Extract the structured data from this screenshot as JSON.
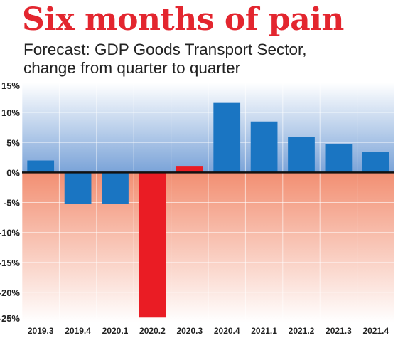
{
  "title": "Six months of pain",
  "subtitle": [
    "Forecast: GDP Goods Transport Sector,",
    "change from quarter to quarter"
  ],
  "colors": {
    "title": "#e3262f",
    "positive_bar": "#1a75c2",
    "negative_bar": "#ea1c24",
    "upper_background_top": "#ffffff",
    "upper_background_bottom": "#7aa3d8",
    "lower_background_top": "#f28f72",
    "lower_background_bottom": "#ffffff"
  },
  "chart_data": {
    "type": "bar",
    "title": "Six months of pain",
    "subtitle": "Forecast: GDP Goods Transport Sector, change from quarter to quarter",
    "categories": [
      "2019.3",
      "2019.4",
      "2020.1",
      "2020.2",
      "2020.3",
      "2020.4",
      "2021.1",
      "2021.2",
      "2021.3",
      "2021.4"
    ],
    "values": [
      2.0,
      -5.2,
      -5.2,
      -24.2,
      1.1,
      11.6,
      8.5,
      5.9,
      4.7,
      3.4
    ],
    "bar_colors": [
      "#1a75c2",
      "#1a75c2",
      "#1a75c2",
      "#ea1c24",
      "#ea1c24",
      "#1a75c2",
      "#1a75c2",
      "#1a75c2",
      "#1a75c2",
      "#1a75c2"
    ],
    "ylim": [
      -25,
      15
    ],
    "yticks": [
      15,
      10,
      5,
      0,
      -5,
      -10,
      -15,
      -20,
      -25
    ],
    "ytick_labels": [
      "15%",
      "10%",
      "5%",
      "0%",
      "-5%",
      "-10%",
      "-15%",
      "-20%",
      "-25%"
    ],
    "xlabel": "",
    "ylabel": "",
    "grid": true
  }
}
